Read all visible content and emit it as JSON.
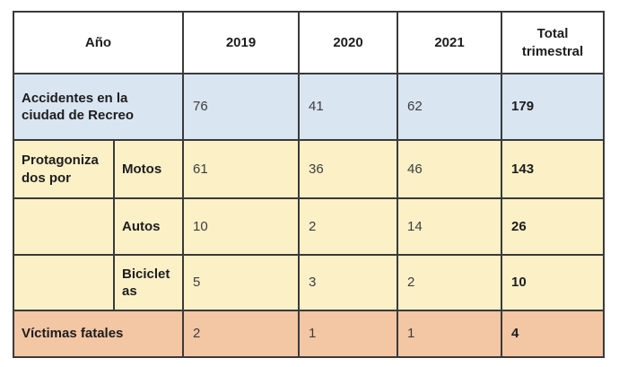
{
  "chart_data": {
    "type": "table",
    "columns": [
      "Año",
      "2019",
      "2020",
      "2021",
      "Total trimestral"
    ],
    "rows": [
      {
        "label": "Accidentes en la ciudad de Recreo",
        "values": [
          76,
          41,
          62
        ],
        "total": 179
      },
      {
        "group": "Protagonizados por",
        "label": "Motos",
        "values": [
          61,
          36,
          46
        ],
        "total": 143
      },
      {
        "group": "Protagonizados por",
        "label": "Autos",
        "values": [
          10,
          2,
          14
        ],
        "total": 26
      },
      {
        "group": "Protagonizados por",
        "label": "Bicicletas",
        "values": [
          5,
          3,
          2
        ],
        "total": 10
      },
      {
        "label": "Víctimas fatales",
        "values": [
          2,
          1,
          1
        ],
        "total": 4
      }
    ]
  },
  "display": {
    "accidents_label": "Accidentes en la\nciudad de Recreo",
    "group_label": "Protagoniza\ndos por",
    "bicicletas_label": "Biciclet\nas"
  },
  "colors": {
    "row-accidents": "#d9e5f1",
    "row-group": "#fcf0c7",
    "row-victims": "#f3c6a4",
    "grid": "#3a3a3a",
    "header-bg": "#ffffff",
    "label-text": "#1d1d1d",
    "number-text": "#3d3d3d"
  }
}
